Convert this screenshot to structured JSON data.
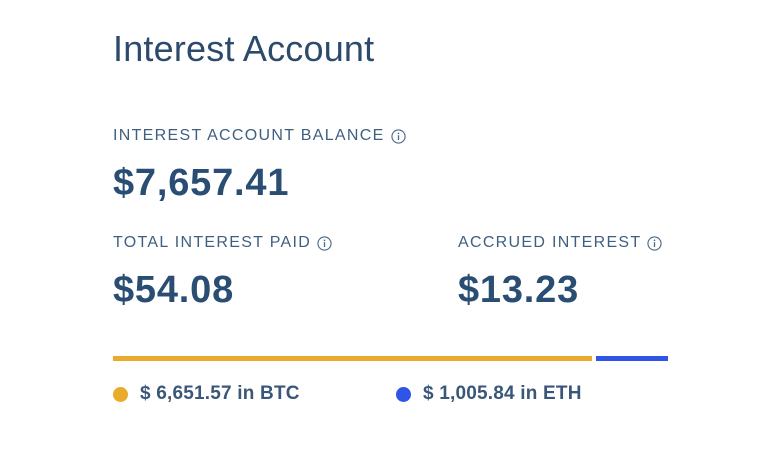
{
  "page": {
    "title": "Interest Account"
  },
  "balance": {
    "label": "INTEREST ACCOUNT BALANCE",
    "value": "$7,657.41",
    "info_icon": "info-circle-icon"
  },
  "total_paid": {
    "label": "TOTAL INTEREST PAID",
    "value": "$54.08",
    "info_icon": "info-circle-icon"
  },
  "accrued": {
    "label": "ACCRUED INTEREST",
    "value": "$13.23",
    "info_icon": "info-circle-icon"
  },
  "allocation": {
    "segments": [
      {
        "asset": "BTC",
        "amount": 6651.57,
        "color": "#e8ab2c"
      },
      {
        "asset": "ETH",
        "amount": 1005.84,
        "color": "#2f54e8"
      }
    ]
  },
  "legend": {
    "btc_label": "$ 6,651.57 in BTC",
    "eth_label": "$ 1,005.84 in ETH"
  },
  "colors": {
    "btc": "#e8ab2c",
    "eth": "#2f54e8",
    "text_primary": "#2a4d73"
  }
}
